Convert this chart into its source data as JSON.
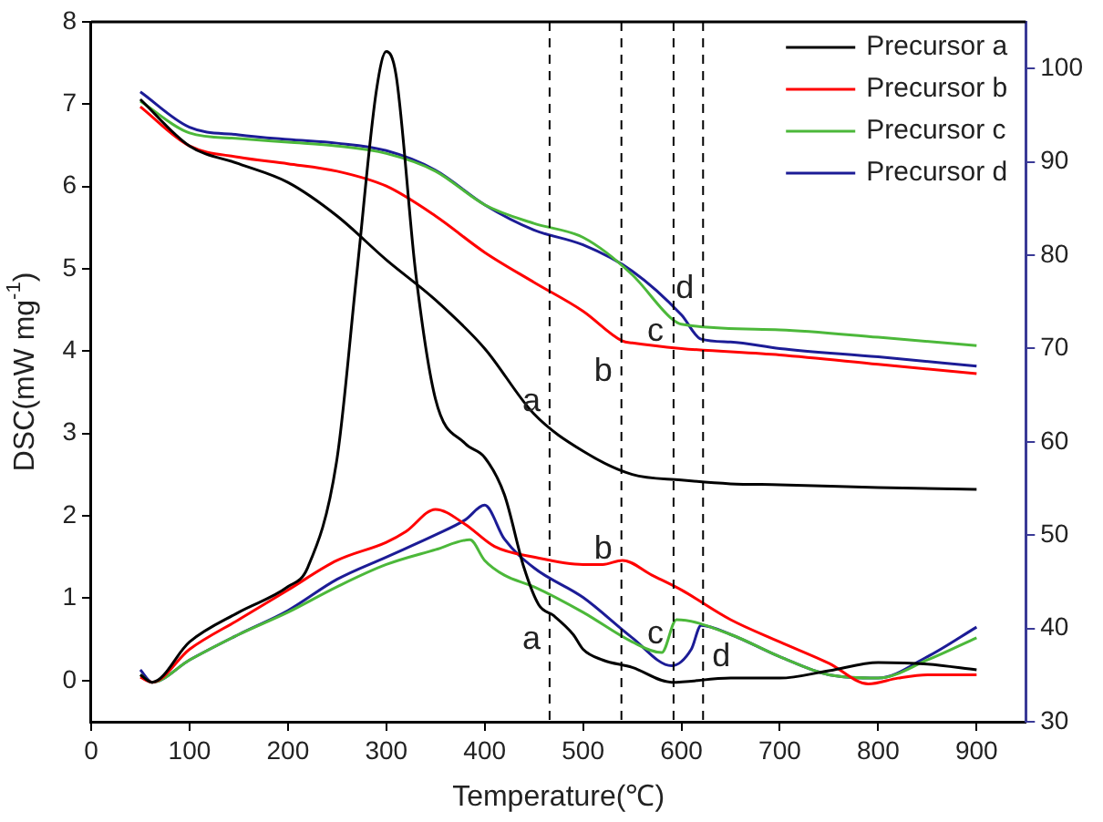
{
  "chart_data": {
    "type": "line",
    "xlabel": "Temperature(℃)",
    "ylabel": "DSC(mW mg$^{-1}$)",
    "xlim": [
      0,
      950
    ],
    "xticks": [
      0,
      100,
      200,
      300,
      400,
      500,
      600,
      700,
      800,
      900
    ],
    "ylim": [
      -0.5,
      8
    ],
    "yticks": [
      0,
      1,
      2,
      3,
      4,
      5,
      6,
      7,
      8
    ],
    "y2lim": [
      30,
      105
    ],
    "y2ticks": [
      30,
      40,
      50,
      60,
      70,
      80,
      90,
      100
    ],
    "grid": false,
    "legend": "top right",
    "marker": "none",
    "line_style": "solid",
    "series": [
      {
        "name": "Precursor a",
        "color": "#000000",
        "x": [
          50,
          62,
          100,
          150,
          200,
          220,
          250,
          270,
          290,
          300,
          310,
          330,
          350,
          380,
          400,
          420,
          440,
          455,
          470,
          490,
          500,
          520,
          550,
          590,
          650,
          700,
          750,
          800,
          850,
          900
        ],
        "values": [
          0.07,
          -0.02,
          0.47,
          0.83,
          1.14,
          1.37,
          2.7,
          4.94,
          7.17,
          7.64,
          7.35,
          4.94,
          3.42,
          2.88,
          2.71,
          2.26,
          1.37,
          0.92,
          0.79,
          0.56,
          0.38,
          0.25,
          0.16,
          -0.02,
          0.03,
          0.03,
          0.12,
          0.22,
          0.2,
          0.13
        ]
      },
      {
        "name": "Precursor b",
        "color": "#ff0000",
        "x": [
          50,
          62,
          100,
          150,
          200,
          250,
          300,
          320,
          350,
          380,
          410,
          450,
          500,
          520,
          540,
          570,
          600,
          650,
          700,
          750,
          790,
          820,
          850,
          900
        ],
        "values": [
          0.04,
          -0.02,
          0.38,
          0.74,
          1.1,
          1.46,
          1.68,
          1.81,
          2.08,
          1.9,
          1.63,
          1.5,
          1.41,
          1.41,
          1.46,
          1.28,
          1.1,
          0.74,
          0.47,
          0.21,
          -0.04,
          0.03,
          0.07,
          0.07
        ]
      },
      {
        "name": "Precursor c",
        "color": "#4cb83a",
        "x": [
          50,
          62,
          100,
          150,
          200,
          250,
          300,
          350,
          385,
          400,
          420,
          450,
          500,
          550,
          580,
          595,
          650,
          700,
          750,
          800,
          850,
          900
        ],
        "values": [
          0.07,
          -0.02,
          0.25,
          0.56,
          0.83,
          1.14,
          1.41,
          1.59,
          1.71,
          1.46,
          1.28,
          1.14,
          0.83,
          0.47,
          0.34,
          0.74,
          0.56,
          0.29,
          0.07,
          0.03,
          0.25,
          0.52
        ]
      },
      {
        "name": "Precursor d",
        "color": "#1c1c96",
        "x": [
          50,
          62,
          100,
          150,
          200,
          250,
          300,
          350,
          380,
          400,
          420,
          450,
          500,
          550,
          590,
          610,
          620,
          650,
          700,
          750,
          800,
          850,
          900
        ],
        "values": [
          0.13,
          -0.02,
          0.25,
          0.56,
          0.85,
          1.23,
          1.5,
          1.77,
          1.95,
          2.13,
          1.72,
          1.37,
          1.01,
          0.52,
          0.18,
          0.38,
          0.67,
          0.56,
          0.29,
          0.07,
          0.03,
          0.29,
          0.65
        ]
      },
      {
        "color": "#000000",
        "axis": "y2",
        "x": [
          50,
          100,
          150,
          200,
          250,
          300,
          350,
          400,
          450,
          500,
          550,
          600,
          650,
          700,
          800,
          900
        ],
        "values": [
          96.7,
          91.7,
          89.8,
          87.8,
          84.2,
          79.5,
          75.2,
          70.0,
          63.0,
          59.0,
          56.5,
          55.9,
          55.5,
          55.4,
          55.1,
          54.9
        ]
      },
      {
        "color": "#ff0000",
        "axis": "y2",
        "x": [
          50,
          100,
          150,
          200,
          250,
          300,
          350,
          400,
          450,
          500,
          540,
          550,
          600,
          700,
          800,
          900
        ],
        "values": [
          95.9,
          91.7,
          90.5,
          89.8,
          89.0,
          87.4,
          84.2,
          80.3,
          77.1,
          74.0,
          70.8,
          70.6,
          70.0,
          69.3,
          68.3,
          67.3
        ]
      },
      {
        "color": "#4cb83a",
        "axis": "y2",
        "x": [
          50,
          100,
          150,
          200,
          250,
          300,
          350,
          400,
          450,
          500,
          550,
          590,
          600,
          700,
          800,
          900
        ],
        "values": [
          96.5,
          93.1,
          92.5,
          92.1,
          91.7,
          90.9,
          89.0,
          85.4,
          83.4,
          81.9,
          77.9,
          73.2,
          72.6,
          72.0,
          71.2,
          70.3
        ]
      },
      {
        "color": "#1c1c96",
        "axis": "y2",
        "x": [
          50,
          100,
          150,
          200,
          250,
          300,
          350,
          400,
          450,
          500,
          550,
          600,
          620,
          650,
          700,
          800,
          900
        ],
        "values": [
          97.5,
          93.7,
          92.9,
          92.4,
          92.0,
          91.2,
          89.1,
          85.4,
          82.7,
          81.1,
          78.3,
          73.6,
          71.0,
          70.7,
          70.0,
          69.1,
          68.1
        ]
      }
    ],
    "ref_lines": [
      {
        "axis": "x",
        "value": 466,
        "color": "#000000",
        "line_style": "dashed"
      },
      {
        "axis": "x",
        "value": 539,
        "color": "#000000",
        "line_style": "dashed"
      },
      {
        "axis": "x",
        "value": 592,
        "color": "#000000",
        "line_style": "dashed"
      },
      {
        "axis": "x",
        "value": 622,
        "color": "#000000",
        "line_style": "dashed"
      }
    ],
    "annotations": [
      {
        "text": "a",
        "x": 466,
        "y": 3.38
      },
      {
        "text": "a",
        "x": 466,
        "y": 0.5
      },
      {
        "text": "b",
        "x": 539,
        "y": 3.75
      },
      {
        "text": "b",
        "x": 539,
        "y": 1.59
      },
      {
        "text": "c",
        "x": 592,
        "y": 4.24
      },
      {
        "text": "c",
        "x": 592,
        "y": 0.56
      },
      {
        "text": "d",
        "x": 622,
        "y": 4.76
      },
      {
        "text": "d",
        "x": 622,
        "y": 0.29
      }
    ]
  }
}
